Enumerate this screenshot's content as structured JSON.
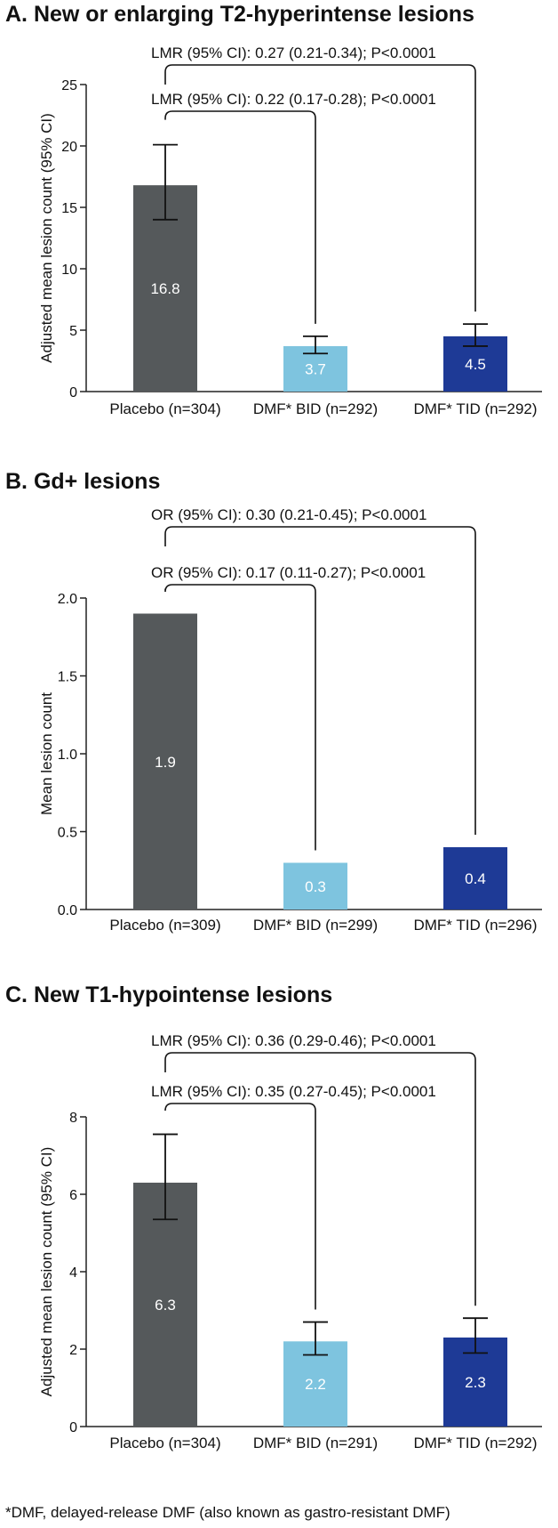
{
  "chart_data": [
    {
      "type": "bar",
      "title": "A. New or enlarging T2-hyperintense lesions",
      "ylabel": "Adjusted mean lesion count (95% CI)",
      "ylim": [
        0,
        25
      ],
      "yticks": [
        0,
        5,
        10,
        15,
        20,
        25
      ],
      "ytick_labels": [
        "0",
        "5",
        "10",
        "15",
        "20",
        "25"
      ],
      "categories": [
        "Placebo (n=304)",
        "DMF* BID (n=292)",
        "DMF* TID (n=292)"
      ],
      "values": [
        16.8,
        3.7,
        4.5
      ],
      "value_labels": [
        "16.8",
        "3.7",
        "4.5"
      ],
      "ci": [
        [
          14.0,
          20.1
        ],
        [
          3.1,
          4.5
        ],
        [
          3.7,
          5.5
        ]
      ],
      "colors": [
        "#55595b",
        "#7ec4df",
        "#1e3a96"
      ],
      "label_color": "#ffffff",
      "comparisons": [
        {
          "label": "LMR (95% CI): 0.27 (0.21-0.34); P<0.0001",
          "from": 0,
          "to": 2,
          "level": "upper"
        },
        {
          "label": "LMR (95% CI): 0.22 (0.17-0.28); P<0.0001",
          "from": 0,
          "to": 1,
          "level": "lower"
        }
      ]
    },
    {
      "type": "bar",
      "title": "B. Gd+ lesions",
      "ylabel": "Mean lesion count",
      "ylim": [
        0,
        2.0
      ],
      "yticks": [
        0,
        0.5,
        1.0,
        1.5,
        2.0
      ],
      "ytick_labels": [
        "0.0",
        "0.5",
        "1.0",
        "1.5",
        "2.0"
      ],
      "categories": [
        "Placebo (n=309)",
        "DMF* BID (n=299)",
        "DMF* TID (n=296)"
      ],
      "values": [
        1.9,
        0.3,
        0.4
      ],
      "value_labels": [
        "1.9",
        "0.3",
        "0.4"
      ],
      "ci": null,
      "colors": [
        "#55595b",
        "#7ec4df",
        "#1e3a96"
      ],
      "label_color": "#ffffff",
      "comparisons": [
        {
          "label": "OR (95% CI): 0.30 (0.21-0.45); P<0.0001",
          "from": 0,
          "to": 2,
          "level": "upper"
        },
        {
          "label": "OR (95% CI): 0.17 (0.11-0.27); P<0.0001",
          "from": 0,
          "to": 1,
          "level": "lower"
        }
      ]
    },
    {
      "type": "bar",
      "title": "C. New T1-hypointense lesions",
      "ylabel": "Adjusted mean lesion count (95% CI)",
      "ylim": [
        0,
        8
      ],
      "yticks": [
        0,
        2,
        4,
        6,
        8
      ],
      "ytick_labels": [
        "0",
        "2",
        "4",
        "6",
        "8"
      ],
      "categories": [
        "Placebo (n=304)",
        "DMF* BID (n=291)",
        "DMF* TID (n=292)"
      ],
      "values": [
        6.3,
        2.2,
        2.3
      ],
      "value_labels": [
        "6.3",
        "2.2",
        "2.3"
      ],
      "ci": [
        [
          5.35,
          7.55
        ],
        [
          1.85,
          2.7
        ],
        [
          1.9,
          2.8
        ]
      ],
      "colors": [
        "#55595b",
        "#7ec4df",
        "#1e3a96"
      ],
      "label_color": "#ffffff",
      "comparisons": [
        {
          "label": "LMR (95% CI): 0.36 (0.29-0.46); P<0.0001",
          "from": 0,
          "to": 2,
          "level": "upper"
        },
        {
          "label": "LMR (95% CI): 0.35 (0.27-0.45); P<0.0001",
          "from": 0,
          "to": 1,
          "level": "lower"
        }
      ]
    }
  ],
  "footnote": "*DMF, delayed-release DMF (also known as gastro-resistant DMF)"
}
